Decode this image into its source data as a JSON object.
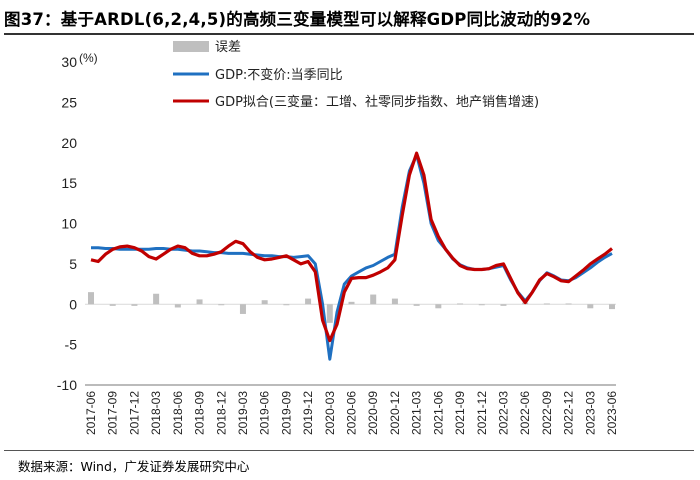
{
  "title": "图37：基于ARDL(6,2,4,5)的高频三变量模型可以解释GDP同比波动的92%",
  "source": "数据来源：Wind，广发证券发展研究中心",
  "chart_data": {
    "type": "line",
    "ylabel": "(%)",
    "ylim": [
      -10,
      30
    ],
    "yticks": [
      -10,
      -5,
      0,
      5,
      10,
      15,
      20,
      25,
      30
    ],
    "xticks": [
      "2017-06",
      "2017-09",
      "2017-12",
      "2018-03",
      "2018-06",
      "2018-09",
      "2018-12",
      "2019-03",
      "2019-06",
      "2019-09",
      "2019-12",
      "2020-03",
      "2020-06",
      "2020-09",
      "2020-12",
      "2021-03",
      "2021-06",
      "2021-09",
      "2021-12",
      "2022-03",
      "2022-06",
      "2022-09",
      "2022-12",
      "2023-03",
      "2023-06"
    ],
    "legend": [
      "误差",
      "GDP:不变价:当季同比",
      "GDP拟合(三变量：工增、社零同步指数、地产销售增速)"
    ],
    "colors": {
      "error": "#bfbfbf",
      "gdp": "#1f70c1",
      "fit": "#c00000"
    },
    "months": [
      "2017-06",
      "2017-07",
      "2017-08",
      "2017-09",
      "2017-10",
      "2017-11",
      "2017-12",
      "2018-01",
      "2018-02",
      "2018-03",
      "2018-04",
      "2018-05",
      "2018-06",
      "2018-07",
      "2018-08",
      "2018-09",
      "2018-10",
      "2018-11",
      "2018-12",
      "2019-01",
      "2019-02",
      "2019-03",
      "2019-04",
      "2019-05",
      "2019-06",
      "2019-07",
      "2019-08",
      "2019-09",
      "2019-10",
      "2019-11",
      "2019-12",
      "2020-01",
      "2020-02",
      "2020-03",
      "2020-04",
      "2020-05",
      "2020-06",
      "2020-07",
      "2020-08",
      "2020-09",
      "2020-10",
      "2020-11",
      "2020-12",
      "2021-01",
      "2021-02",
      "2021-03",
      "2021-04",
      "2021-05",
      "2021-06",
      "2021-07",
      "2021-08",
      "2021-09",
      "2021-10",
      "2021-11",
      "2021-12",
      "2022-01",
      "2022-02",
      "2022-03",
      "2022-04",
      "2022-05",
      "2022-06",
      "2022-07",
      "2022-08",
      "2022-09",
      "2022-10",
      "2022-11",
      "2022-12",
      "2023-01",
      "2023-02",
      "2023-03",
      "2023-04",
      "2023-05",
      "2023-06"
    ],
    "series": [
      {
        "name": "GDP:不变价:当季同比",
        "values": [
          7.0,
          7.0,
          6.9,
          6.9,
          6.8,
          6.8,
          6.8,
          6.8,
          6.8,
          6.9,
          6.9,
          6.8,
          6.8,
          6.7,
          6.6,
          6.6,
          6.5,
          6.4,
          6.4,
          6.3,
          6.3,
          6.3,
          6.2,
          6.1,
          6.0,
          6.0,
          5.9,
          5.9,
          5.8,
          5.9,
          6.0,
          5.0,
          0.0,
          -6.8,
          -1.0,
          2.5,
          3.5,
          4.0,
          4.5,
          4.8,
          5.3,
          5.8,
          6.2,
          12.0,
          16.5,
          18.5,
          15.0,
          10.0,
          7.9,
          6.8,
          5.6,
          4.9,
          4.5,
          4.3,
          4.3,
          4.4,
          4.6,
          4.8,
          3.0,
          1.5,
          0.4,
          1.5,
          2.9,
          3.9,
          3.5,
          3.0,
          2.9,
          3.3,
          3.9,
          4.5,
          5.2,
          5.8,
          6.3
        ]
      },
      {
        "name": "GDP拟合(三变量：工增、社零同步指数、地产销售增速)",
        "values": [
          5.5,
          5.3,
          6.2,
          6.8,
          7.1,
          7.2,
          7.0,
          6.6,
          5.9,
          5.6,
          6.2,
          6.8,
          7.2,
          7.0,
          6.3,
          6.0,
          6.0,
          6.2,
          6.5,
          7.2,
          7.8,
          7.5,
          6.5,
          5.8,
          5.5,
          5.6,
          5.8,
          6.0,
          5.5,
          5.0,
          5.3,
          4.0,
          -2.0,
          -4.5,
          -2.5,
          1.5,
          3.2,
          3.3,
          3.3,
          3.6,
          4.0,
          4.5,
          5.5,
          11.0,
          16.0,
          18.7,
          16.0,
          10.5,
          8.4,
          6.8,
          5.7,
          4.8,
          4.4,
          4.3,
          4.3,
          4.4,
          4.8,
          5.0,
          3.2,
          1.4,
          0.2,
          1.5,
          3.0,
          3.8,
          3.4,
          2.9,
          2.8,
          3.5,
          4.2,
          5.0,
          5.6,
          6.2,
          6.9
        ]
      },
      {
        "name": "误差",
        "values": [
          1.5,
          0,
          0,
          -0.2,
          0,
          0,
          -0.2,
          0,
          0,
          1.3,
          0,
          0,
          -0.4,
          0,
          0,
          0.6,
          0,
          0,
          -0.1,
          0,
          0,
          -1.2,
          0,
          0,
          0.5,
          0,
          0,
          -0.1,
          0,
          0,
          0.7,
          0,
          0,
          -2.3,
          0,
          0,
          0.3,
          0,
          0,
          1.2,
          0,
          0,
          0.7,
          0,
          0,
          -0.2,
          0,
          0,
          -0.5,
          0,
          0,
          0.1,
          0,
          0,
          -0.1,
          0,
          0,
          -0.2,
          0,
          0,
          0.2,
          0,
          0,
          0.1,
          0,
          0,
          0.1,
          0,
          0,
          -0.5,
          0,
          0,
          -0.6
        ]
      }
    ]
  }
}
